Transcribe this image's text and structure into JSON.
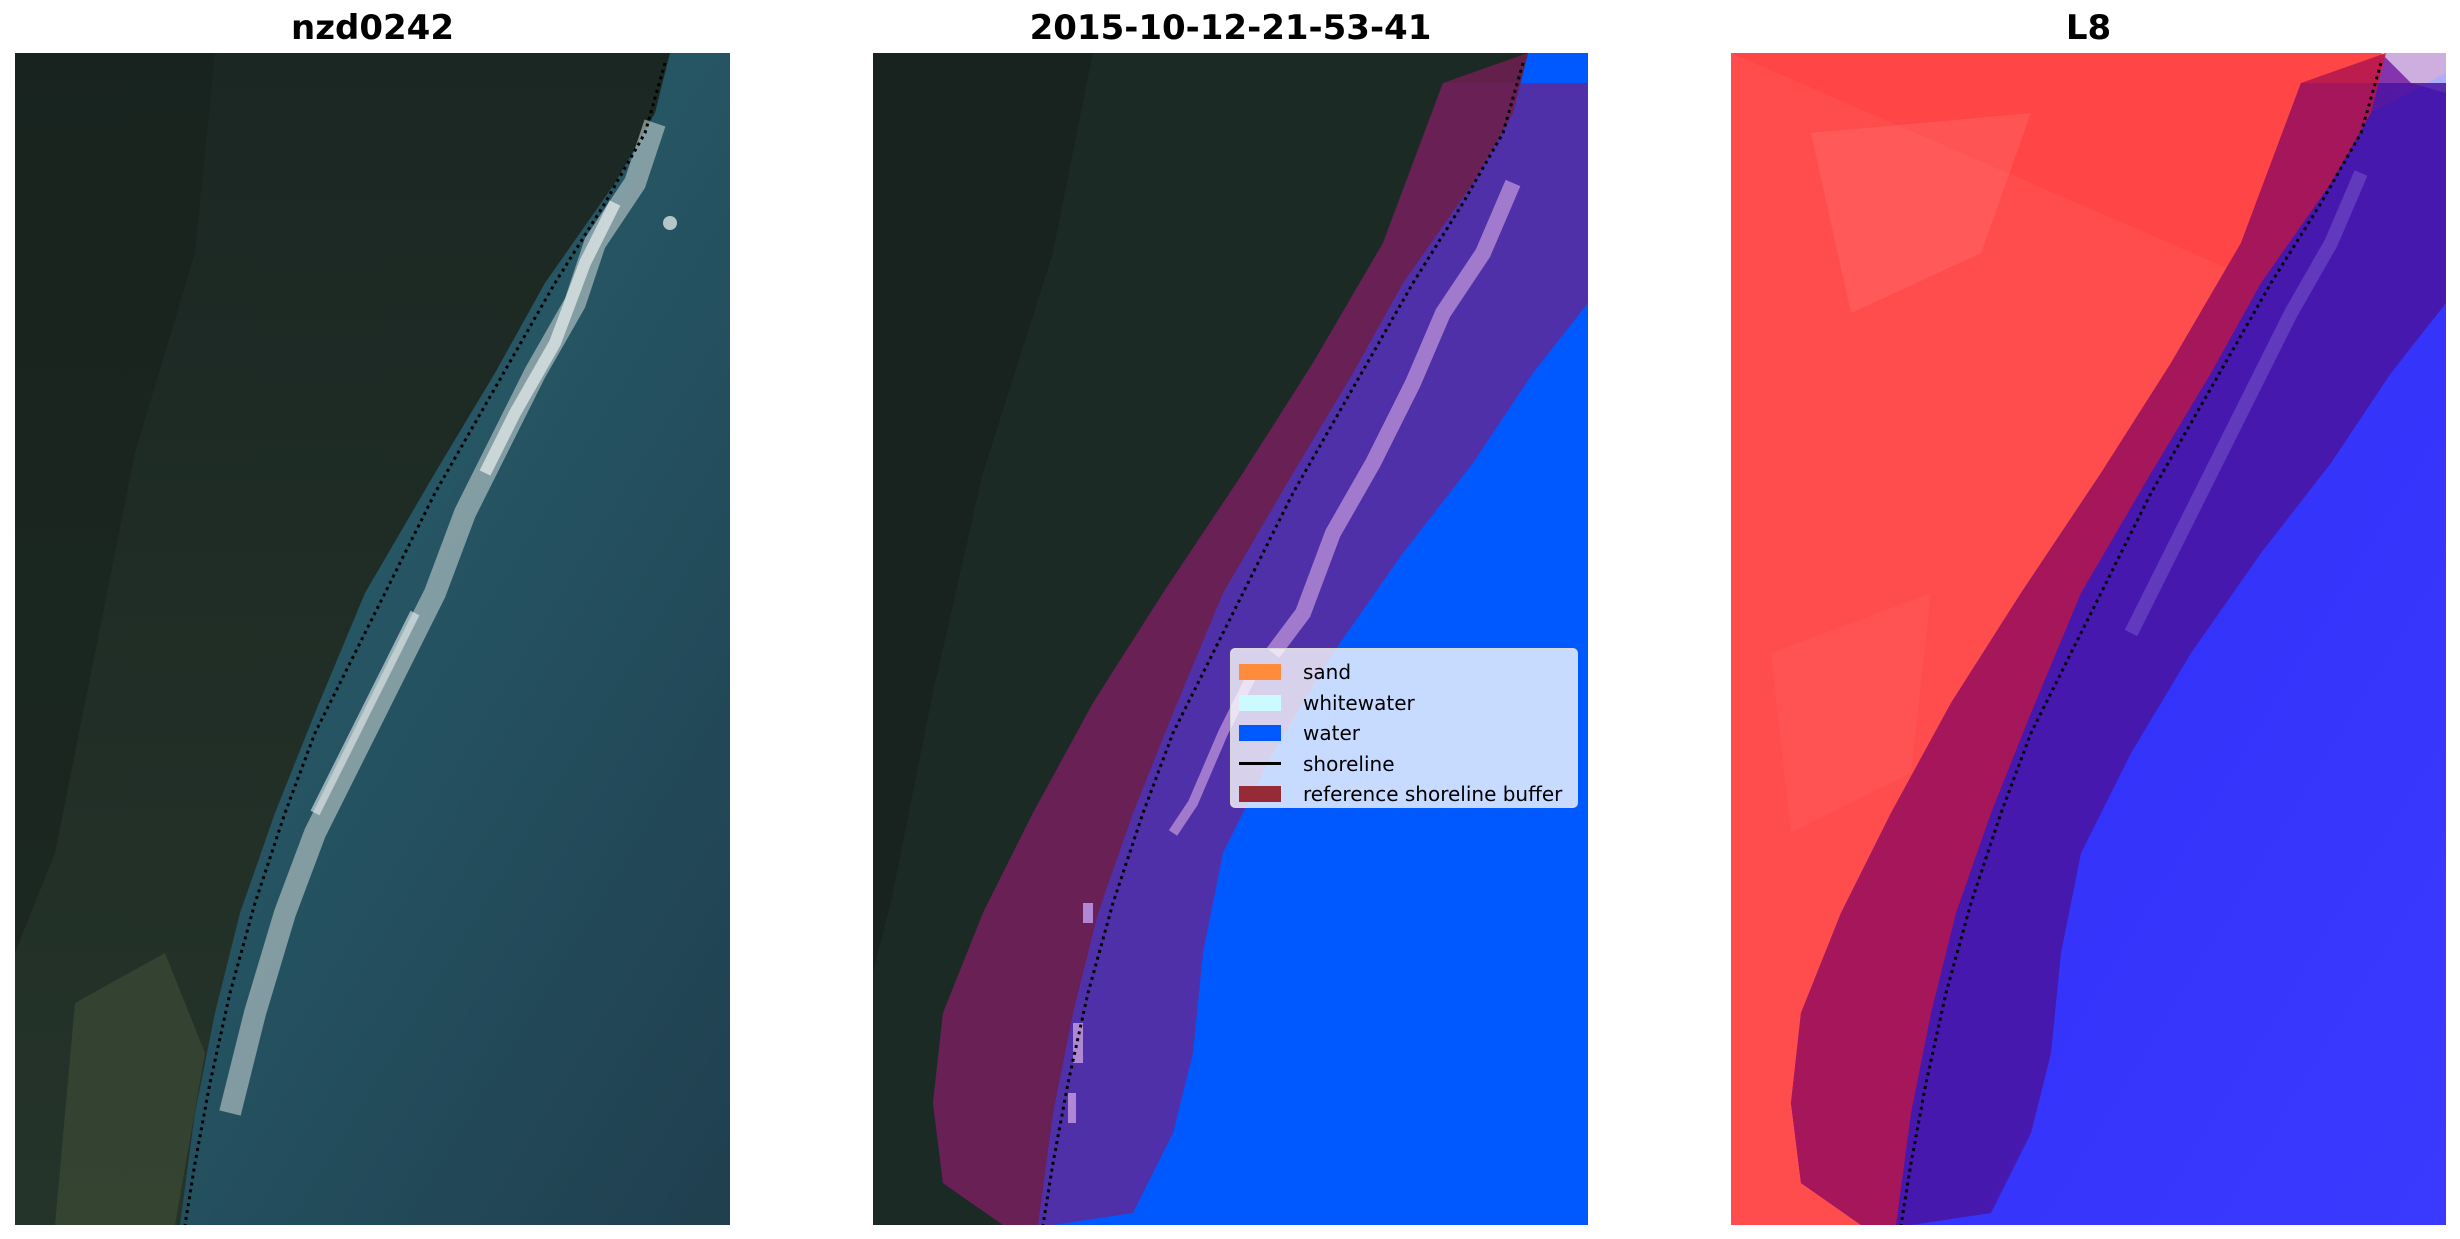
{
  "panels": [
    {
      "title": "nzd0242",
      "image": "true-color satellite image of forested coastline with breaking surf and shoreline dotted line"
    },
    {
      "title": "2015-10-12-21-53-41",
      "image": "classified image with water, whitewater and reference shoreline buffer overlay"
    },
    {
      "title": "L8",
      "image": "red-blue index image with reference shoreline buffer and shoreline"
    }
  ],
  "legend": {
    "items": [
      {
        "label": "sand",
        "color": "#ff8c3a",
        "kind": "patch"
      },
      {
        "label": "whitewater",
        "color": "#cdfaff",
        "kind": "patch"
      },
      {
        "label": "water",
        "color": "#0059ff",
        "kind": "patch"
      },
      {
        "label": "shoreline",
        "color": "#000000",
        "kind": "line"
      },
      {
        "label": "reference shoreline buffer",
        "color": "#962a36",
        "kind": "patch"
      }
    ]
  },
  "colors": {
    "forest": "#1c2a25",
    "ocean": "#2d5866",
    "water_class": "#0059ff",
    "buffer": "#7a1f4a",
    "index_red": "#ff4a4a",
    "index_blue": "#1616f0"
  }
}
